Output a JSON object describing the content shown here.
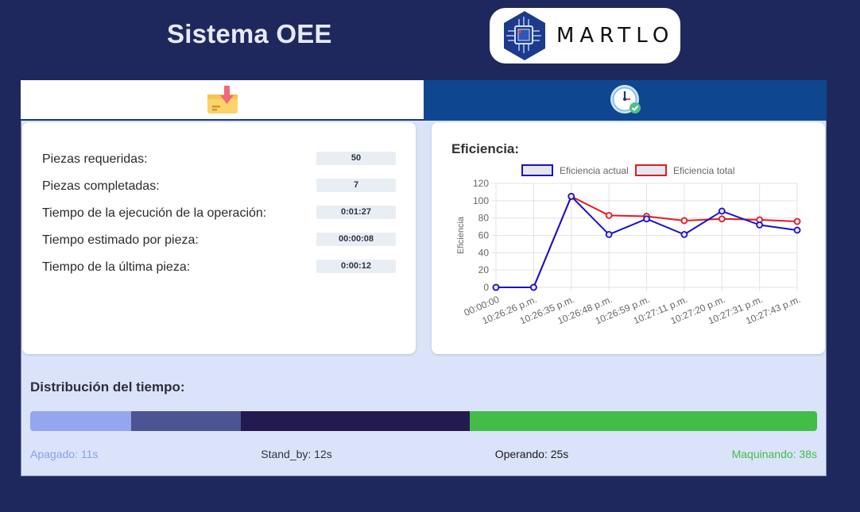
{
  "header": {
    "title": "Sistema OEE",
    "logo_text": "MARTLO"
  },
  "tabs": [
    {
      "icon": "package-download-icon",
      "active": true
    },
    {
      "icon": "clock-check-icon",
      "active": false
    }
  ],
  "stats": [
    {
      "label": "Piezas requeridas:",
      "value": "50"
    },
    {
      "label": "Piezas completadas:",
      "value": "7"
    },
    {
      "label": "Tiempo de la ejecución de la operación:",
      "value": "0:01:27"
    },
    {
      "label": "Tiempo estimado por pieza:",
      "value": "00:00:08"
    },
    {
      "label": "Tiempo de la última pieza:",
      "value": "0:00:12"
    }
  ],
  "efficiency_card": {
    "title": "Eficiencia:"
  },
  "chart_data": {
    "type": "line",
    "title": "",
    "ylabel": "Eficiencia",
    "xlabel": "",
    "ylim": [
      0,
      120
    ],
    "yticks": [
      0,
      20,
      40,
      60,
      80,
      100,
      120
    ],
    "grid": true,
    "legend_position": "top",
    "categories": [
      "00:00:00",
      "10:26:26 p.m.",
      "10:26:35 p.m.",
      "10:26:48 p.m.",
      "10:26:59 p.m.",
      "10:27:11 p.m.",
      "10:27:20 p.m.",
      "10:27:31 p.m.",
      "10:27:43 p.m."
    ],
    "series": [
      {
        "name": "Eficiencia actual",
        "color": "#1a12c4",
        "values": [
          0,
          0,
          105,
          61,
          79,
          61,
          88,
          72,
          66
        ]
      },
      {
        "name": "Eficiencia total",
        "color": "#e21b24",
        "values": [
          0,
          0,
          105,
          83,
          82,
          77,
          79,
          78,
          76
        ]
      }
    ]
  },
  "distribution": {
    "title": "Distribución del tiempo:",
    "segments": [
      {
        "label": "Apagado: 11s",
        "seconds": 11,
        "color": "#95a6f0",
        "label_color": "#8c9ee8"
      },
      {
        "label": "Stand_by: 12s",
        "seconds": 12,
        "color": "#4d5494",
        "label_color": "#333344"
      },
      {
        "label": "Operando: 25s",
        "seconds": 25,
        "color": "#231b50",
        "label_color": "#1a1a1a"
      },
      {
        "label": "Maquinando: 38s",
        "seconds": 38,
        "color": "#41bd48",
        "label_color": "#41bd48"
      }
    ]
  }
}
